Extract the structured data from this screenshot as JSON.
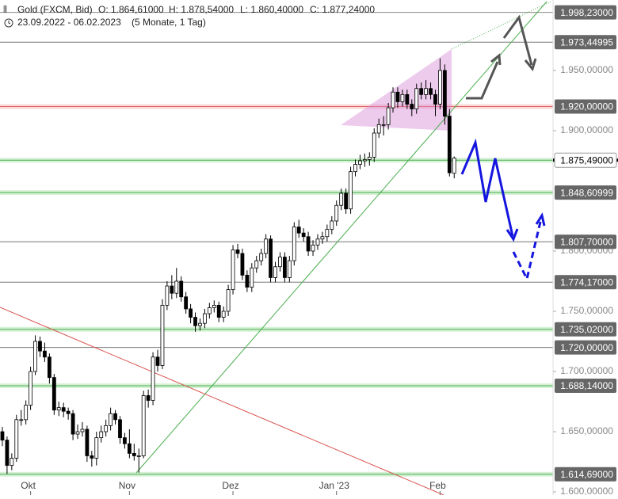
{
  "chart_data": {
    "type": "candlestick",
    "header": {
      "instrument": "Gold (FXCM, Bid)",
      "open": "O: 1.864,61000",
      "high": "H: 1.878,54000",
      "low": "L: 1.860,40000",
      "close": "C: 1.877,24000",
      "range": "23.09.2022 - 06.02.2023",
      "span": "(5 Monate, 1 Tag)"
    },
    "xlim": [
      -0.5,
      117
    ],
    "ylim": [
      1597.4,
      2008.5
    ],
    "xticks": [
      {
        "value": 6,
        "label": "Okt"
      },
      {
        "value": 27,
        "label": "Nov"
      },
      {
        "value": 49,
        "label": "Dez"
      },
      {
        "value": 71,
        "label": "Jan '23"
      },
      {
        "value": 93,
        "label": "Feb"
      }
    ],
    "yticks": [
      {
        "value": 1950,
        "label": "1.950,00000"
      },
      {
        "value": 1900,
        "label": "1.900,00000"
      },
      {
        "value": 1800,
        "label": "1.800,00000"
      },
      {
        "value": 1750,
        "label": "1.750,00000"
      },
      {
        "value": 1700,
        "label": "1.700,00000"
      },
      {
        "value": 1650,
        "label": "1.650,00000"
      },
      {
        "value": 1600,
        "label": "1.600,00000"
      }
    ],
    "up_color": "#ffffff",
    "down_color": "#000000",
    "levels": [
      {
        "value": 1998.23,
        "label": "1.998,23000",
        "color": "#888888"
      },
      {
        "value": 1973.44995,
        "label": "1.973,44995",
        "color": "#777777"
      },
      {
        "value": 1920,
        "label": "1.920,00000",
        "color": "#e06060"
      },
      {
        "value": 1875.49,
        "label": "1.875,49000",
        "color": "#4caf50"
      },
      {
        "value": 1848.60999,
        "label": "1.848,60999",
        "color": "#4caf50"
      },
      {
        "value": 1807.7,
        "label": "1.807,70000",
        "color": "#777777"
      },
      {
        "value": 1774.17,
        "label": "1.774,17000",
        "color": "#777777"
      },
      {
        "value": 1735.02,
        "label": "1.735,02000",
        "color": "#4caf50"
      },
      {
        "value": 1720,
        "label": "1.720,00000",
        "color": "#777777"
      },
      {
        "value": 1688.14,
        "label": "1.688,14000",
        "color": "#4caf50"
      },
      {
        "value": 1614.69,
        "label": "1.614,69000",
        "color": "#4caf50"
      }
    ],
    "ohlc": [
      [
        1650,
        1654,
        1638,
        1643
      ],
      [
        1643,
        1646,
        1615,
        1622
      ],
      [
        1622,
        1632,
        1618,
        1628
      ],
      [
        1628,
        1664,
        1625,
        1660
      ],
      [
        1660,
        1668,
        1655,
        1660
      ],
      [
        1660,
        1676,
        1656,
        1672
      ],
      [
        1672,
        1704,
        1668,
        1700
      ],
      [
        1700,
        1730,
        1697,
        1725
      ],
      [
        1725,
        1729,
        1712,
        1717
      ],
      [
        1717,
        1724,
        1708,
        1712
      ],
      [
        1712,
        1715,
        1690,
        1695
      ],
      [
        1695,
        1698,
        1664,
        1668
      ],
      [
        1668,
        1675,
        1663,
        1670
      ],
      [
        1670,
        1674,
        1662,
        1667
      ],
      [
        1667,
        1670,
        1660,
        1665
      ],
      [
        1665,
        1668,
        1643,
        1648
      ],
      [
        1648,
        1656,
        1644,
        1650
      ],
      [
        1650,
        1658,
        1646,
        1652
      ],
      [
        1652,
        1655,
        1625,
        1630
      ],
      [
        1630,
        1634,
        1621,
        1628
      ],
      [
        1628,
        1650,
        1622,
        1645
      ],
      [
        1645,
        1655,
        1641,
        1650
      ],
      [
        1650,
        1660,
        1646,
        1655
      ],
      [
        1655,
        1670,
        1651,
        1665
      ],
      [
        1665,
        1668,
        1656,
        1660
      ],
      [
        1660,
        1663,
        1640,
        1645
      ],
      [
        1645,
        1649,
        1636,
        1640
      ],
      [
        1640,
        1652,
        1628,
        1632
      ],
      [
        1632,
        1640,
        1626,
        1630
      ],
      [
        1630,
        1636,
        1616,
        1630
      ],
      [
        1630,
        1684,
        1628,
        1680
      ],
      [
        1680,
        1685,
        1670,
        1676
      ],
      [
        1676,
        1716,
        1672,
        1712
      ],
      [
        1712,
        1718,
        1700,
        1705
      ],
      [
        1705,
        1760,
        1702,
        1755
      ],
      [
        1755,
        1775,
        1751,
        1771
      ],
      [
        1771,
        1780,
        1760,
        1765
      ],
      [
        1765,
        1786,
        1761,
        1775
      ],
      [
        1775,
        1779,
        1758,
        1762
      ],
      [
        1762,
        1766,
        1748,
        1752
      ],
      [
        1752,
        1756,
        1740,
        1745
      ],
      [
        1745,
        1749,
        1733,
        1738
      ],
      [
        1738,
        1744,
        1734,
        1740
      ],
      [
        1740,
        1752,
        1736,
        1748
      ],
      [
        1748,
        1757,
        1744,
        1753
      ],
      [
        1753,
        1759,
        1749,
        1755
      ],
      [
        1755,
        1758,
        1741,
        1745
      ],
      [
        1745,
        1754,
        1741,
        1750
      ],
      [
        1750,
        1772,
        1746,
        1768
      ],
      [
        1768,
        1805,
        1764,
        1801
      ],
      [
        1801,
        1806,
        1794,
        1798
      ],
      [
        1798,
        1802,
        1776,
        1780
      ],
      [
        1780,
        1784,
        1766,
        1770
      ],
      [
        1770,
        1790,
        1766,
        1786
      ],
      [
        1786,
        1796,
        1782,
        1792
      ],
      [
        1792,
        1802,
        1788,
        1798
      ],
      [
        1798,
        1814,
        1794,
        1810
      ],
      [
        1810,
        1813,
        1774,
        1778
      ],
      [
        1778,
        1791,
        1774,
        1787
      ],
      [
        1787,
        1799,
        1783,
        1795
      ],
      [
        1795,
        1799,
        1774,
        1778
      ],
      [
        1778,
        1796,
        1774,
        1792
      ],
      [
        1792,
        1824,
        1788,
        1820
      ],
      [
        1820,
        1826,
        1811,
        1815
      ],
      [
        1815,
        1819,
        1808,
        1812
      ],
      [
        1812,
        1816,
        1796,
        1800
      ],
      [
        1800,
        1809,
        1796,
        1805
      ],
      [
        1805,
        1814,
        1801,
        1810
      ],
      [
        1810,
        1816,
        1806,
        1812
      ],
      [
        1812,
        1822,
        1808,
        1818
      ],
      [
        1818,
        1829,
        1814,
        1825
      ],
      [
        1825,
        1842,
        1821,
        1838
      ],
      [
        1838,
        1852,
        1834,
        1848
      ],
      [
        1848,
        1852,
        1831,
        1835
      ],
      [
        1835,
        1870,
        1831,
        1866
      ],
      [
        1866,
        1876,
        1862,
        1872
      ],
      [
        1872,
        1880,
        1868,
        1875
      ],
      [
        1875,
        1881,
        1870,
        1876
      ],
      [
        1876,
        1882,
        1871,
        1878
      ],
      [
        1878,
        1902,
        1874,
        1898
      ],
      [
        1898,
        1910,
        1894,
        1905
      ],
      [
        1905,
        1912,
        1896,
        1905
      ],
      [
        1905,
        1923,
        1901,
        1919
      ],
      [
        1919,
        1936,
        1915,
        1932
      ],
      [
        1932,
        1936,
        1919,
        1924
      ],
      [
        1924,
        1934,
        1920,
        1930
      ],
      [
        1930,
        1934,
        1918,
        1922
      ],
      [
        1922,
        1926,
        1912,
        1918
      ],
      [
        1918,
        1939,
        1914,
        1935
      ],
      [
        1935,
        1940,
        1926,
        1930
      ],
      [
        1930,
        1942,
        1926,
        1935
      ],
      [
        1935,
        1940,
        1926,
        1930
      ],
      [
        1930,
        1934,
        1912,
        1922
      ],
      [
        1922,
        1960,
        1918,
        1950
      ],
      [
        1950,
        1955,
        1905,
        1912
      ],
      [
        1912,
        1918,
        1862,
        1865
      ],
      [
        1864.61,
        1878.54,
        1860.4,
        1877.24
      ]
    ]
  }
}
